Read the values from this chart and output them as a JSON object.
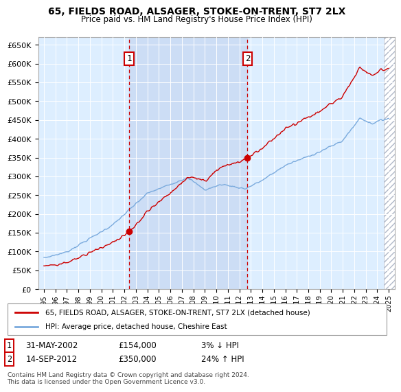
{
  "title": "65, FIELDS ROAD, ALSAGER, STOKE-ON-TRENT, ST7 2LX",
  "subtitle": "Price paid vs. HM Land Registry's House Price Index (HPI)",
  "sale1_date": "31-MAY-2002",
  "sale1_price": 154000,
  "sale1_label": "1",
  "sale1_hpi_note": "3% ↓ HPI",
  "sale2_date": "14-SEP-2012",
  "sale2_price": 350000,
  "sale2_label": "2",
  "sale2_hpi_note": "24% ↑ HPI",
  "legend_line1": "65, FIELDS ROAD, ALSAGER, STOKE-ON-TRENT, ST7 2LX (detached house)",
  "legend_line2": "HPI: Average price, detached house, Cheshire East",
  "footer": "Contains HM Land Registry data © Crown copyright and database right 2024.\nThis data is licensed under the Open Government Licence v3.0.",
  "hpi_color": "#7aaadd",
  "price_color": "#cc0000",
  "vline_color": "#cc0000",
  "bg_color": "#ddeeff",
  "highlight_color": "#ccddf5",
  "ylim_min": 0,
  "ylim_max": 670000,
  "sale1_x": 2002.42,
  "sale2_x": 2012.71
}
